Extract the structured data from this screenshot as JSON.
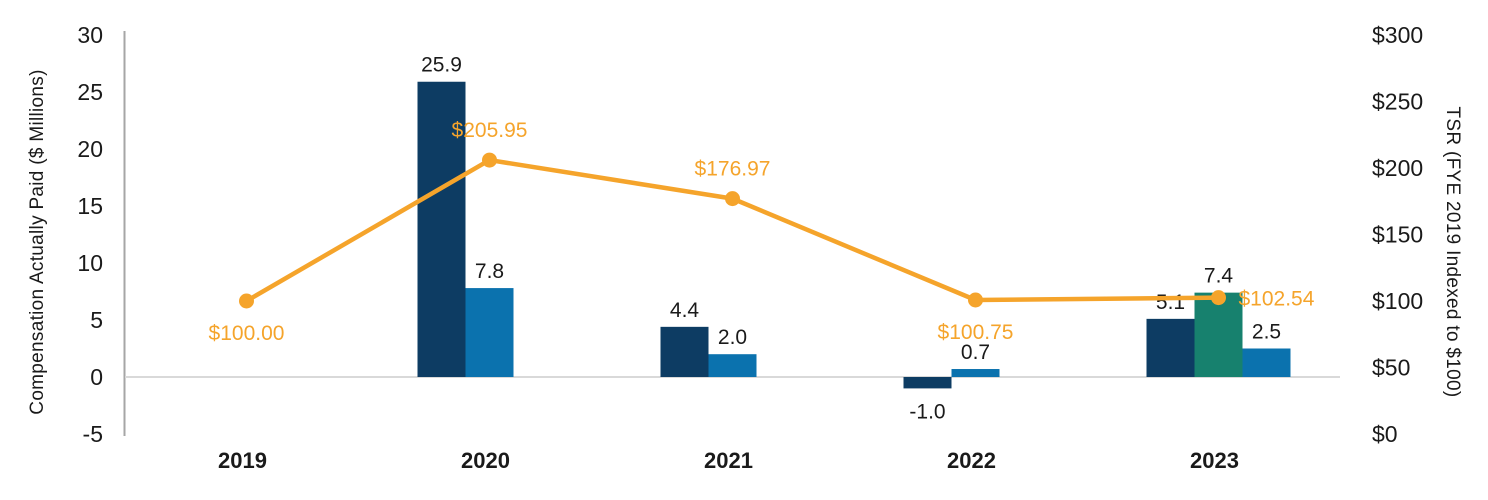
{
  "chart_data": {
    "type": "bar+line combo",
    "title": "",
    "categories": [
      "2019",
      "2020",
      "2021",
      "2022",
      "2023"
    ],
    "bar_series": [
      {
        "name": "cap-navy",
        "color": "#0D3C63",
        "values": [
          null,
          25.9,
          4.4,
          -1.0,
          5.1
        ]
      },
      {
        "name": "cap-teal",
        "color": "#17816E",
        "values": [
          null,
          null,
          null,
          null,
          7.4
        ]
      },
      {
        "name": "cap-light",
        "color": "#0B72AE",
        "values": [
          null,
          7.8,
          2.0,
          0.7,
          2.5
        ]
      }
    ],
    "bar_labels": [
      [
        "",
        "25.9",
        "4.4",
        "-1.0",
        "5.1"
      ],
      [
        "",
        "",
        "",
        "",
        "7.4"
      ],
      [
        "",
        "7.8",
        "2.0",
        "0.7",
        "2.5"
      ]
    ],
    "line_series": {
      "name": "tsr",
      "color": "#F5A42B",
      "values": [
        100.0,
        205.95,
        176.97,
        100.75,
        102.54
      ],
      "labels": [
        "$100.00",
        "$205.95",
        "$176.97",
        "$100.75",
        "$102.54"
      ],
      "label_positions": [
        "below",
        "above",
        "above",
        "below",
        "right"
      ]
    },
    "left_axis": {
      "label": "Compensation Actually Paid ($ Millions)",
      "min": -5,
      "max": 30,
      "ticks": [
        {
          "label": "30",
          "value": 30
        },
        {
          "label": "25",
          "value": 25
        },
        {
          "label": "20",
          "value": 20
        },
        {
          "label": "15",
          "value": 15
        },
        {
          "label": "10",
          "value": 10
        },
        {
          "label": "5",
          "value": 5
        },
        {
          "label": "0",
          "value": 0
        },
        {
          "label": "-5",
          "value": -5
        }
      ]
    },
    "right_axis": {
      "label": "TSR (FYE 2019 Indexed to $100)",
      "min": 0,
      "max": 300,
      "ticks": [
        {
          "label": "$300",
          "value": 300
        },
        {
          "label": "$250",
          "value": 250
        },
        {
          "label": "$200",
          "value": 200
        },
        {
          "label": "$150",
          "value": 150
        },
        {
          "label": "$100",
          "value": 100
        },
        {
          "label": "$50",
          "value": 50
        },
        {
          "label": "$0",
          "value": 0
        }
      ]
    },
    "layout": {
      "grid": "zero-line only",
      "legend": "none",
      "text_color": "#1a1a1a",
      "axis_line_color": "#A6A6A6",
      "zero_line_color": "#D9D9D9"
    }
  }
}
